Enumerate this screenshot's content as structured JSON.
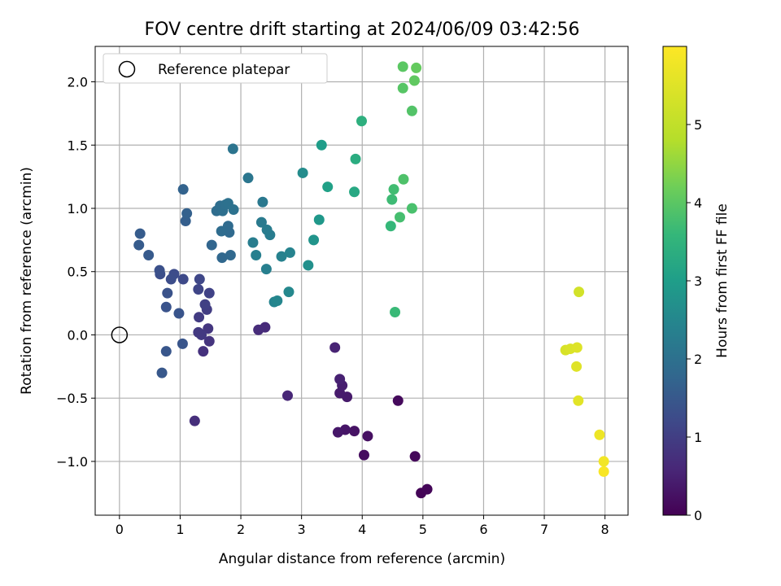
{
  "chart_data": {
    "type": "scatter",
    "title": "FOV centre drift starting at 2024/06/09 03:42:56",
    "xlabel": "Angular distance from reference (arcmin)",
    "ylabel": "Rotation from reference (arcmin)",
    "xlim": [
      -0.4,
      8.38
    ],
    "ylim": [
      -1.425,
      2.28
    ],
    "xticks": [
      0,
      1,
      2,
      3,
      4,
      5,
      6,
      7,
      8
    ],
    "yticks": [
      -1.0,
      -0.5,
      0.0,
      0.5,
      1.0,
      1.5,
      2.0
    ],
    "xtick_labels": [
      "0",
      "1",
      "2",
      "3",
      "4",
      "5",
      "6",
      "7",
      "8"
    ],
    "ytick_labels": [
      "−1.0",
      "−0.5",
      "0.0",
      "0.5",
      "1.0",
      "1.5",
      "2.0"
    ],
    "grid": true,
    "legend": {
      "placement": "top-left",
      "entries": [
        "Reference platepar"
      ]
    },
    "reference_point": {
      "x": 0,
      "y": 0
    },
    "colorbar": {
      "label": "Hours from first FF file",
      "range": [
        0,
        6
      ],
      "ticks": [
        0,
        1,
        2,
        3,
        4,
        5
      ],
      "colormap": "viridis"
    },
    "points": [
      {
        "x": 4.97,
        "y": -1.25,
        "h": 0.05
      },
      {
        "x": 5.07,
        "y": -1.22,
        "h": 0.08
      },
      {
        "x": 4.87,
        "y": -0.96,
        "h": 0.12
      },
      {
        "x": 4.59,
        "y": -0.52,
        "h": 0.15
      },
      {
        "x": 4.03,
        "y": -0.95,
        "h": 0.2
      },
      {
        "x": 4.09,
        "y": -0.8,
        "h": 0.25
      },
      {
        "x": 3.87,
        "y": -0.76,
        "h": 0.3
      },
      {
        "x": 3.72,
        "y": -0.75,
        "h": 0.35
      },
      {
        "x": 3.6,
        "y": -0.77,
        "h": 0.38
      },
      {
        "x": 3.75,
        "y": -0.49,
        "h": 0.42
      },
      {
        "x": 3.63,
        "y": -0.46,
        "h": 0.45
      },
      {
        "x": 3.67,
        "y": -0.4,
        "h": 0.5
      },
      {
        "x": 3.63,
        "y": -0.35,
        "h": 0.55
      },
      {
        "x": 3.55,
        "y": -0.1,
        "h": 0.6
      },
      {
        "x": 2.77,
        "y": -0.48,
        "h": 0.65
      },
      {
        "x": 2.4,
        "y": 0.06,
        "h": 0.72
      },
      {
        "x": 2.29,
        "y": 0.04,
        "h": 0.75
      },
      {
        "x": 1.24,
        "y": -0.68,
        "h": 0.8
      },
      {
        "x": 1.38,
        "y": -0.13,
        "h": 0.85
      },
      {
        "x": 1.48,
        "y": -0.05,
        "h": 0.9
      },
      {
        "x": 1.46,
        "y": 0.05,
        "h": 0.95
      },
      {
        "x": 1.3,
        "y": 0.02,
        "h": 1.0
      },
      {
        "x": 1.35,
        "y": 0.0,
        "h": 1.02
      },
      {
        "x": 1.31,
        "y": 0.14,
        "h": 1.05
      },
      {
        "x": 1.44,
        "y": 0.2,
        "h": 1.1
      },
      {
        "x": 1.41,
        "y": 0.24,
        "h": 1.15
      },
      {
        "x": 1.48,
        "y": 0.33,
        "h": 1.2
      },
      {
        "x": 1.3,
        "y": 0.36,
        "h": 1.25
      },
      {
        "x": 1.32,
        "y": 0.44,
        "h": 1.3
      },
      {
        "x": 1.05,
        "y": 0.44,
        "h": 1.35
      },
      {
        "x": 0.9,
        "y": 0.48,
        "h": 1.4
      },
      {
        "x": 0.85,
        "y": 0.44,
        "h": 1.42
      },
      {
        "x": 0.67,
        "y": 0.48,
        "h": 1.45
      },
      {
        "x": 0.66,
        "y": 0.51,
        "h": 1.48
      },
      {
        "x": 0.79,
        "y": 0.33,
        "h": 1.52
      },
      {
        "x": 0.77,
        "y": 0.22,
        "h": 1.55
      },
      {
        "x": 0.98,
        "y": 0.17,
        "h": 1.58
      },
      {
        "x": 1.04,
        "y": -0.07,
        "h": 1.6
      },
      {
        "x": 0.77,
        "y": -0.13,
        "h": 1.62
      },
      {
        "x": 0.7,
        "y": -0.3,
        "h": 1.65
      },
      {
        "x": 0.48,
        "y": 0.63,
        "h": 1.7
      },
      {
        "x": 0.32,
        "y": 0.71,
        "h": 1.72
      },
      {
        "x": 0.34,
        "y": 0.8,
        "h": 1.75
      },
      {
        "x": 1.09,
        "y": 0.9,
        "h": 1.8
      },
      {
        "x": 1.11,
        "y": 0.96,
        "h": 1.85
      },
      {
        "x": 1.05,
        "y": 1.15,
        "h": 1.9
      },
      {
        "x": 1.52,
        "y": 0.71,
        "h": 1.95
      },
      {
        "x": 1.69,
        "y": 0.61,
        "h": 2.0
      },
      {
        "x": 1.83,
        "y": 0.63,
        "h": 2.02
      },
      {
        "x": 1.81,
        "y": 0.81,
        "h": 2.05
      },
      {
        "x": 1.79,
        "y": 0.86,
        "h": 2.08
      },
      {
        "x": 1.68,
        "y": 0.82,
        "h": 2.1
      },
      {
        "x": 1.6,
        "y": 0.98,
        "h": 2.12
      },
      {
        "x": 1.66,
        "y": 1.02,
        "h": 2.15
      },
      {
        "x": 1.7,
        "y": 0.98,
        "h": 2.18
      },
      {
        "x": 1.75,
        "y": 1.03,
        "h": 2.2
      },
      {
        "x": 1.79,
        "y": 1.04,
        "h": 2.22
      },
      {
        "x": 1.88,
        "y": 0.99,
        "h": 2.25
      },
      {
        "x": 1.87,
        "y": 1.47,
        "h": 2.3
      },
      {
        "x": 2.12,
        "y": 1.24,
        "h": 2.35
      },
      {
        "x": 2.36,
        "y": 1.05,
        "h": 2.4
      },
      {
        "x": 2.34,
        "y": 0.89,
        "h": 2.45
      },
      {
        "x": 2.43,
        "y": 0.83,
        "h": 2.5
      },
      {
        "x": 2.48,
        "y": 0.79,
        "h": 2.52
      },
      {
        "x": 2.2,
        "y": 0.73,
        "h": 2.55
      },
      {
        "x": 2.25,
        "y": 0.63,
        "h": 2.58
      },
      {
        "x": 2.42,
        "y": 0.52,
        "h": 2.6
      },
      {
        "x": 2.67,
        "y": 0.62,
        "h": 2.65
      },
      {
        "x": 2.81,
        "y": 0.65,
        "h": 2.7
      },
      {
        "x": 2.55,
        "y": 0.26,
        "h": 2.72
      },
      {
        "x": 2.6,
        "y": 0.27,
        "h": 2.75
      },
      {
        "x": 2.79,
        "y": 0.34,
        "h": 2.8
      },
      {
        "x": 3.02,
        "y": 1.28,
        "h": 2.9
      },
      {
        "x": 3.11,
        "y": 0.55,
        "h": 3.0
      },
      {
        "x": 3.2,
        "y": 0.75,
        "h": 3.1
      },
      {
        "x": 3.29,
        "y": 0.91,
        "h": 3.2
      },
      {
        "x": 3.33,
        "y": 1.5,
        "h": 3.3
      },
      {
        "x": 3.43,
        "y": 1.17,
        "h": 3.4
      },
      {
        "x": 3.87,
        "y": 1.13,
        "h": 3.6
      },
      {
        "x": 3.89,
        "y": 1.39,
        "h": 3.7
      },
      {
        "x": 3.99,
        "y": 1.69,
        "h": 3.8
      },
      {
        "x": 4.47,
        "y": 0.86,
        "h": 4.0
      },
      {
        "x": 4.54,
        "y": 0.18,
        "h": 4.05
      },
      {
        "x": 4.49,
        "y": 1.07,
        "h": 4.1
      },
      {
        "x": 4.52,
        "y": 1.15,
        "h": 4.15
      },
      {
        "x": 4.62,
        "y": 0.93,
        "h": 4.2
      },
      {
        "x": 4.82,
        "y": 1.0,
        "h": 4.25
      },
      {
        "x": 4.68,
        "y": 1.23,
        "h": 4.3
      },
      {
        "x": 4.82,
        "y": 1.77,
        "h": 4.35
      },
      {
        "x": 4.67,
        "y": 1.95,
        "h": 4.4
      },
      {
        "x": 4.67,
        "y": 2.12,
        "h": 4.45
      },
      {
        "x": 4.86,
        "y": 2.01,
        "h": 4.5
      },
      {
        "x": 4.89,
        "y": 2.11,
        "h": 4.55
      },
      {
        "x": 7.57,
        "y": 0.34,
        "h": 5.6
      },
      {
        "x": 7.35,
        "y": -0.12,
        "h": 5.65
      },
      {
        "x": 7.43,
        "y": -0.11,
        "h": 5.68
      },
      {
        "x": 7.54,
        "y": -0.1,
        "h": 5.7
      },
      {
        "x": 7.53,
        "y": -0.25,
        "h": 5.72
      },
      {
        "x": 7.56,
        "y": -0.52,
        "h": 5.75
      },
      {
        "x": 7.91,
        "y": -0.79,
        "h": 5.85
      },
      {
        "x": 7.98,
        "y": -1.0,
        "h": 5.9
      },
      {
        "x": 7.98,
        "y": -1.08,
        "h": 5.95
      }
    ]
  }
}
